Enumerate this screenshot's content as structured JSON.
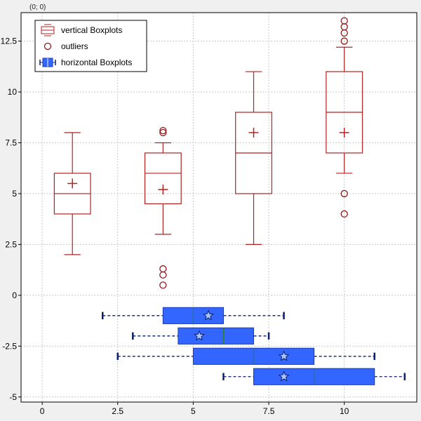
{
  "coordinate_readout": "(0; 0)",
  "chart_data": {
    "type": "boxplot",
    "xlim": [
      -0.7,
      12.4
    ],
    "ylim": [
      -5.25,
      13.9
    ],
    "grid": true,
    "legend_position": "top-left",
    "x_ticks": [
      0,
      2.5,
      5,
      7.5,
      10
    ],
    "x_tick_labels": [
      "0",
      "2.5",
      "5",
      "7.5",
      "10"
    ],
    "y_ticks": [
      -5,
      -2.5,
      0,
      2.5,
      5,
      7.5,
      10,
      12.5
    ],
    "y_tick_labels": [
      "-5",
      "-2.5",
      "0",
      "2.5",
      "5",
      "7.5",
      "10",
      "12.5"
    ],
    "legend": [
      {
        "label": "vertical Boxplots",
        "icon": "vertical-box-icon"
      },
      {
        "label": "outliers",
        "icon": "outlier-circle-icon"
      },
      {
        "label": "horizontal Boxplots",
        "icon": "horizontal-box-icon"
      }
    ],
    "vertical_boxplots": {
      "name": "vertical Boxplots",
      "color": "#b22222",
      "box_width": 1.2,
      "boxes": [
        {
          "pos": 1,
          "min": 2,
          "q1": 4,
          "median": 5,
          "q3": 6,
          "max": 8,
          "mean": 5.5,
          "outliers": []
        },
        {
          "pos": 4,
          "min": 3,
          "q1": 4.5,
          "median": 6,
          "q3": 7,
          "max": 7.5,
          "mean": 5.2,
          "outliers": [
            0.5,
            1,
            1.3,
            8,
            8.1
          ]
        },
        {
          "pos": 7,
          "min": 2.5,
          "q1": 5,
          "median": 7,
          "q3": 9,
          "max": 11,
          "mean": 8,
          "outliers": []
        },
        {
          "pos": 10,
          "min": 6,
          "q1": 7,
          "median": 9,
          "q3": 11,
          "max": 12.2,
          "mean": 8,
          "outliers": [
            4,
            5,
            12.5,
            12.9,
            13.2,
            13.5
          ]
        }
      ]
    },
    "horizontal_boxplots": {
      "name": "horizontal Boxplots",
      "color": "#3366ff",
      "border_color": "#1a3ab0",
      "whisker_color": "#0a1f6e",
      "median_color": "#2e7d32",
      "box_height": 0.8,
      "boxes": [
        {
          "pos": -1,
          "min": 2,
          "q1": 4,
          "median": 5,
          "q3": 6,
          "max": 8,
          "mean": 5.5
        },
        {
          "pos": -2,
          "min": 3,
          "q1": 4.5,
          "median": 6,
          "q3": 7,
          "max": 7.5,
          "mean": 5.2
        },
        {
          "pos": -3,
          "min": 2.5,
          "q1": 5,
          "median": 7,
          "q3": 9,
          "max": 11,
          "mean": 8
        },
        {
          "pos": -4,
          "min": 6,
          "q1": 7,
          "median": 9,
          "q3": 11,
          "max": 12,
          "mean": 8
        }
      ]
    }
  }
}
